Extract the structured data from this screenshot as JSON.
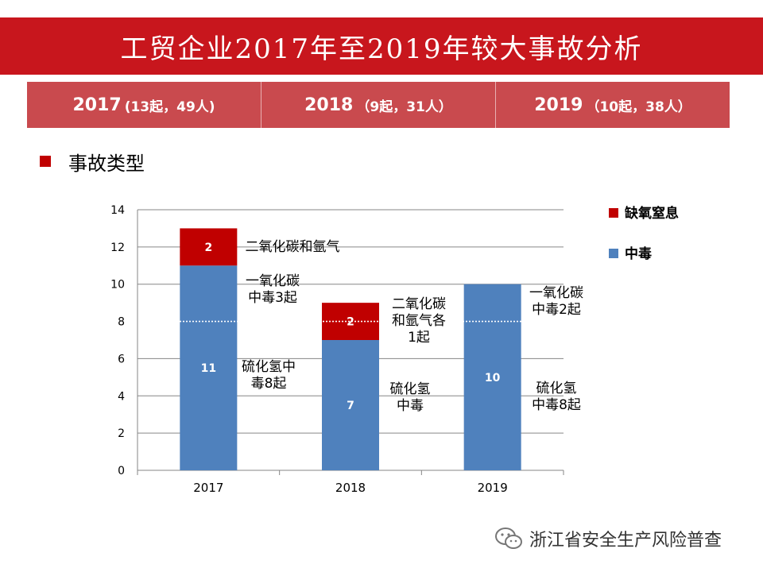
{
  "title": "工贸企业2017年至2019年较大事故分析",
  "year_header": [
    {
      "year": "2017",
      "detail": "(13起，49人)"
    },
    {
      "year": "2018",
      "detail": "（9起，31人）"
    },
    {
      "year": "2019",
      "detail": "（10起，38人）"
    }
  ],
  "section_title": "事故类型",
  "colors": {
    "title_band": "#c8161d",
    "year_row": "#c94a4e",
    "poisoning": "#4f81bd",
    "suffocation": "#c00000"
  },
  "chart_data": {
    "type": "bar",
    "stacked": true,
    "categories": [
      "2017",
      "2018",
      "2019"
    ],
    "series": [
      {
        "name": "中毒",
        "values": [
          11,
          7,
          10
        ],
        "color": "#4f81bd"
      },
      {
        "name": "缺氧窒息",
        "values": [
          2,
          2,
          0
        ],
        "color": "#c00000"
      }
    ],
    "ylim": [
      0,
      14
    ],
    "yticks": [
      "0",
      "2",
      "4",
      "6",
      "8",
      "10",
      "12",
      "14"
    ],
    "grid": true,
    "reference_line": 8,
    "legend_placement": "right",
    "annotations": [
      {
        "category": "2017",
        "lines": [
          "二氧化碳和氩气"
        ]
      },
      {
        "category": "2017",
        "lines": [
          "一氧化碳",
          "中毒3起"
        ]
      },
      {
        "category": "2017",
        "lines": [
          "硫化氢中",
          "毒8起"
        ]
      },
      {
        "category": "2018",
        "lines": [
          "二氧化碳",
          "和氩气各",
          "1起"
        ]
      },
      {
        "category": "2018",
        "lines": [
          "硫化氢",
          "中毒"
        ]
      },
      {
        "category": "2019",
        "lines": [
          "一氧化碳",
          "中毒2起"
        ]
      },
      {
        "category": "2019",
        "lines": [
          "硫化氢",
          "中毒8起"
        ]
      }
    ]
  },
  "watermark": {
    "icon": "wechat-icon",
    "text": "浙江省安全生产风险普查"
  }
}
